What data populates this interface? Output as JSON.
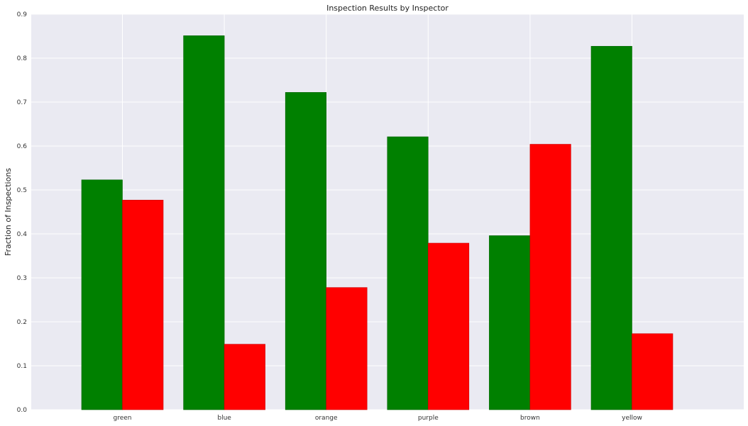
{
  "chart_data": {
    "type": "bar",
    "title": "Inspection Results by Inspector",
    "ylabel": "Fraction of Inspections",
    "xlabel": "",
    "categories": [
      "green",
      "blue",
      "orange",
      "purple",
      "brown",
      "yellow"
    ],
    "series": [
      {
        "color": "#008000",
        "values": [
          0.523,
          0.851,
          0.722,
          0.621,
          0.396,
          0.827
        ]
      },
      {
        "color": "#ff0000",
        "values": [
          0.477,
          0.149,
          0.278,
          0.379,
          0.604,
          0.173
        ]
      }
    ],
    "ylim": [
      0,
      0.9
    ],
    "yticks": [
      "0.0",
      "0.1",
      "0.2",
      "0.3",
      "0.4",
      "0.5",
      "0.6",
      "0.7",
      "0.8",
      "0.9"
    ],
    "grid": true,
    "legend": "none"
  }
}
